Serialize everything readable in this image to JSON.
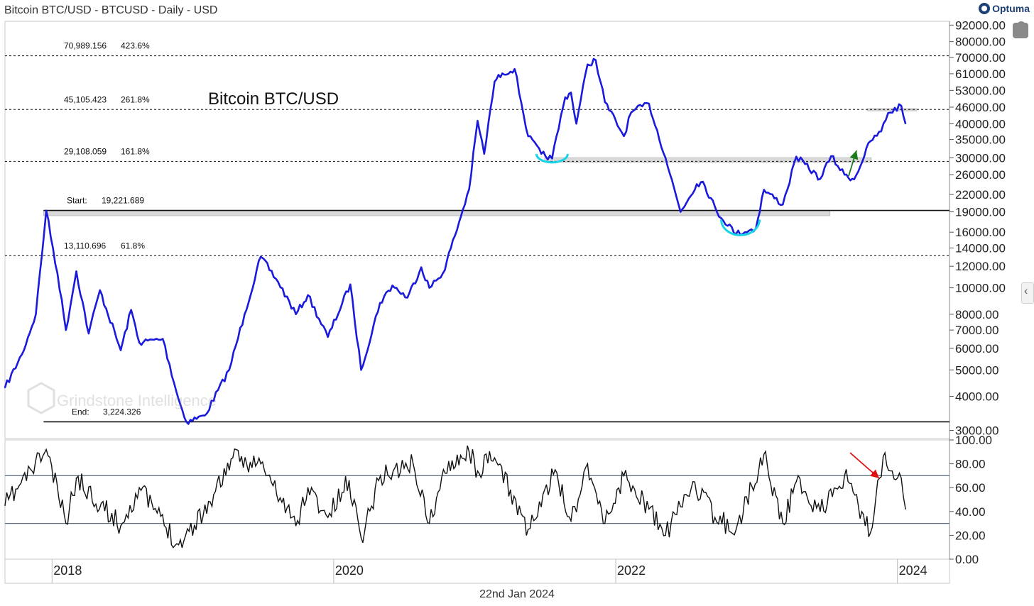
{
  "header": {
    "title": "Bitcoin BTC/USD - BTCUSD - Daily - USD",
    "brand": "Optuma"
  },
  "footer": {
    "date": "22nd Jan 2024"
  },
  "colors": {
    "price_line": "#1a1adc",
    "rsi_line": "#111111",
    "bowl_marker": "#19d3e6",
    "up_arrow": "#1a7a1a",
    "down_arrow": "#e01010",
    "support_band": "#d9d9d9"
  },
  "watermark": {
    "text": "Grindstone Intelligence",
    "icon": "hexagon-g-icon"
  },
  "chart_data": [
    {
      "type": "line",
      "title": "Bitcoin BTC/USD",
      "scale": "log",
      "ylim": [
        2800,
        95000
      ],
      "xlim": [
        "2017-09-01",
        "2024-05-15"
      ],
      "x_ticks": [
        "2018",
        "2020",
        "2022",
        "2024"
      ],
      "y_ticks": [
        "92000.00",
        "80000.00",
        "70000.00",
        "61000.00",
        "53000.00",
        "46000.00",
        "40000.00",
        "35000.00",
        "30000.00",
        "26000.00",
        "22000.00",
        "19000.00",
        "16000.00",
        "14000.00",
        "12000.00",
        "10000.00",
        "8000.00",
        "7000.00",
        "6000.00",
        "5000.00",
        "4000.00",
        "3000.00"
      ],
      "levels": [
        {
          "value": 70989.156,
          "label_value": "70,989.156",
          "label_pct": "423.6%",
          "style": "dotted"
        },
        {
          "value": 45105.423,
          "label_value": "45,105.423",
          "label_pct": "261.8%",
          "style": "dotted"
        },
        {
          "value": 29108.059,
          "label_value": "29,108.059",
          "label_pct": "161.8%",
          "style": "dotted"
        },
        {
          "value": 19221.689,
          "label_value": "19,221.689",
          "label_pct": "Start:",
          "style": "solid"
        },
        {
          "value": 13110.696,
          "label_value": "13,110.696",
          "label_pct": "61.8%",
          "style": "dotted"
        },
        {
          "value": 3224.326,
          "label_value": "3,224.326",
          "label_pct": "End:",
          "style": "solid"
        }
      ],
      "series": [
        {
          "x": [
            "2017-09-01",
            "2017-10-15",
            "2017-11-20",
            "2017-12-17",
            "2018-01-15",
            "2018-02-06",
            "2018-03-05",
            "2018-04-06",
            "2018-05-05",
            "2018-06-28",
            "2018-07-25",
            "2018-08-15",
            "2018-10-15",
            "2018-11-25",
            "2018-12-15",
            "2019-02-01",
            "2019-04-05",
            "2019-05-15",
            "2019-06-26",
            "2019-08-10",
            "2019-09-25",
            "2019-10-26",
            "2019-12-17",
            "2020-02-13",
            "2020-03-12",
            "2020-04-30",
            "2020-06-01",
            "2020-07-10",
            "2020-08-15",
            "2020-09-05",
            "2020-10-10",
            "2020-11-10",
            "2020-12-17",
            "2021-01-08",
            "2021-01-25",
            "2021-02-21",
            "2021-03-13",
            "2021-04-14",
            "2021-05-19",
            "2021-06-22",
            "2021-07-20",
            "2021-08-23",
            "2021-09-07",
            "2021-09-21",
            "2021-10-20",
            "2021-11-10",
            "2021-12-04",
            "2022-01-22",
            "2022-02-10",
            "2022-03-28",
            "2022-05-10",
            "2022-06-18",
            "2022-07-30",
            "2022-08-15",
            "2022-09-20",
            "2022-11-09",
            "2022-12-30",
            "2023-01-20",
            "2023-03-10",
            "2023-04-14",
            "2023-06-15",
            "2023-07-13",
            "2023-08-17",
            "2023-09-11",
            "2023-10-23",
            "2023-11-20",
            "2023-12-08",
            "2024-01-11",
            "2024-01-22"
          ],
          "values": [
            4300,
            5700,
            8000,
            19200,
            11300,
            7000,
            11500,
            6800,
            9800,
            5900,
            8300,
            6300,
            6500,
            3900,
            3224,
            3400,
            5000,
            8000,
            13000,
            10500,
            8000,
            9400,
            6600,
            10300,
            5000,
            8800,
            10200,
            9200,
            11900,
            10000,
            11300,
            15500,
            23000,
            41000,
            31000,
            57000,
            61200,
            63500,
            36000,
            31000,
            29800,
            50000,
            52000,
            40000,
            66000,
            68500,
            48000,
            36000,
            44000,
            47400,
            30000,
            19000,
            24000,
            24500,
            19000,
            15800,
            16500,
            22900,
            20200,
            30300,
            25100,
            30400,
            26000,
            25000,
            34500,
            37500,
            43800,
            46500,
            40000
          ]
        }
      ]
    },
    {
      "type": "line",
      "title": "",
      "ylim": [
        0,
        100
      ],
      "y_ticks": [
        "100.00",
        "80.00",
        "60.00",
        "40.00",
        "20.00",
        "0.00"
      ],
      "reference_lines": [
        70,
        30
      ],
      "series": [
        {
          "x": [
            "2017-09-01",
            "2017-12-17",
            "2018-02-06",
            "2018-03-05",
            "2018-06-28",
            "2018-08-15",
            "2018-11-25",
            "2019-02-15",
            "2019-04-10",
            "2019-06-26",
            "2019-09-25",
            "2019-10-26",
            "2019-12-17",
            "2020-02-10",
            "2020-03-12",
            "2020-05-01",
            "2020-07-25",
            "2020-09-05",
            "2020-10-25",
            "2020-12-17",
            "2021-01-08",
            "2021-02-21",
            "2021-05-19",
            "2021-06-22",
            "2021-07-28",
            "2021-09-07",
            "2021-10-20",
            "2021-12-04",
            "2022-01-22",
            "2022-03-28",
            "2022-05-10",
            "2022-06-18",
            "2022-07-20",
            "2022-09-15",
            "2022-11-09",
            "2023-01-20",
            "2023-03-10",
            "2023-04-14",
            "2023-06-15",
            "2023-08-17",
            "2023-10-23",
            "2023-11-25",
            "2024-01-11",
            "2024-01-22"
          ],
          "values": [
            45,
            92,
            30,
            68,
            28,
            60,
            12,
            48,
            84,
            80,
            28,
            60,
            35,
            66,
            18,
            70,
            80,
            30,
            82,
            90,
            74,
            85,
            25,
            44,
            75,
            32,
            80,
            30,
            70,
            42,
            20,
            44,
            65,
            35,
            25,
            88,
            30,
            65,
            40,
            70,
            22,
            86,
            68,
            42
          ]
        }
      ]
    }
  ]
}
